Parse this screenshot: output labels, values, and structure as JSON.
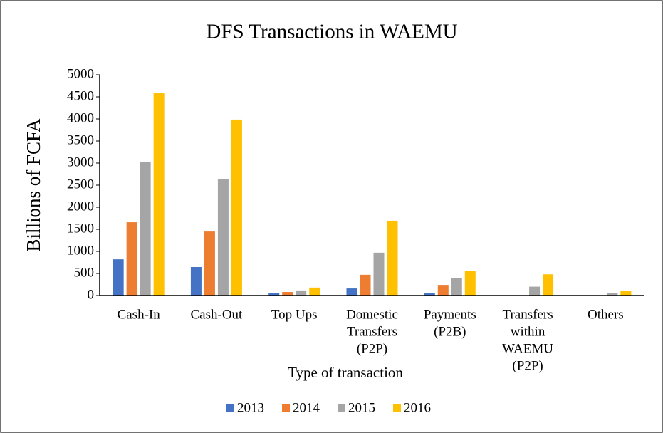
{
  "chart_data": {
    "type": "bar",
    "title": "DFS Transactions  in WAEMU",
    "x_label": "Type of transaction",
    "y_label": "Billions of FCFA",
    "categories": [
      [
        "Cash-In"
      ],
      [
        "Cash-Out"
      ],
      [
        "Top Ups"
      ],
      [
        "Domestic",
        "Transfers",
        "(P2P)"
      ],
      [
        "Payments",
        "(P2B)"
      ],
      [
        "Transfers",
        "within",
        "WAEMU",
        "(P2P)"
      ],
      [
        "Others"
      ]
    ],
    "series": [
      {
        "name": "2013",
        "color": "#4472c4",
        "values": [
          820,
          645,
          50,
          160,
          60,
          0,
          0
        ]
      },
      {
        "name": "2014",
        "color": "#ed7d31",
        "values": [
          1660,
          1450,
          80,
          470,
          240,
          0,
          0
        ]
      },
      {
        "name": "2015",
        "color": "#a5a5a5",
        "values": [
          3020,
          2645,
          115,
          970,
          400,
          200,
          60
        ]
      },
      {
        "name": "2016",
        "color": "#ffc000",
        "values": [
          4580,
          3985,
          180,
          1695,
          550,
          480,
          100
        ]
      }
    ],
    "ylim": [
      0,
      5000
    ],
    "yticks": [
      0,
      500,
      1000,
      1500,
      2000,
      2500,
      3000,
      3500,
      4000,
      4500,
      5000
    ],
    "grid": false,
    "legend": "bottom"
  }
}
